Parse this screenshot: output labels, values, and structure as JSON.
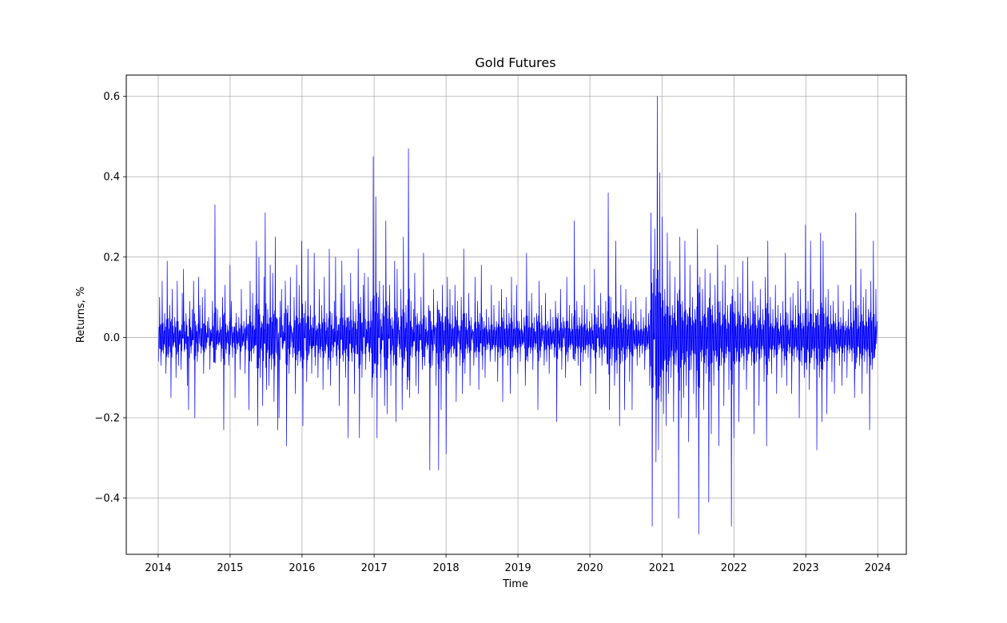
{
  "chart_data": {
    "type": "line",
    "title": "Gold Futures",
    "xlabel": "Time",
    "ylabel": "Returns, %",
    "xlim": [
      "2013-07-23",
      "2024-05-25"
    ],
    "ylim": [
      -0.54,
      0.653
    ],
    "grid": true,
    "line_color": "#0000ff",
    "x_ticks": [
      "2014",
      "2015",
      "2016",
      "2017",
      "2018",
      "2019",
      "2020",
      "2021",
      "2022",
      "2023",
      "2024"
    ],
    "y_ticks": [
      {
        "value": -0.4,
        "label": "−0.4"
      },
      {
        "value": -0.2,
        "label": "−0.2"
      },
      {
        "value": 0.0,
        "label": "0.0"
      },
      {
        "value": 0.2,
        "label": "0.2"
      },
      {
        "value": 0.4,
        "label": "0.4"
      },
      {
        "value": 0.6,
        "label": "0.6"
      }
    ],
    "series": [
      {
        "x_start": "2014-01-02",
        "x_end": "2023-12-29",
        "values": [
          -0.06,
          0.1,
          -0.07,
          0.14,
          -0.04,
          0.06,
          -0.09,
          0.19,
          -0.05,
          0.08,
          -0.15,
          0.12,
          -0.02,
          0.05,
          -0.1,
          0.14,
          -0.07,
          0.02,
          -0.08,
          0.11,
          0.17,
          -0.03,
          0.06,
          -0.12,
          -0.18,
          0.09,
          -0.04,
          0.07,
          0.14,
          -0.2,
          0.03,
          -0.06,
          0.15,
          0.08,
          -0.04,
          0.1,
          -0.09,
          0.12,
          -0.03,
          0.04,
          0.05,
          -0.08,
          0.02,
          0.09,
          -0.06,
          0.33,
          -0.03,
          0.07,
          -0.02,
          0.05,
          -0.06,
          0.1,
          -0.23,
          0.13,
          -0.04,
          0.03,
          -0.07,
          0.18,
          0.09,
          -0.05,
          0.02,
          -0.15,
          0.06,
          -0.03,
          0.05,
          -0.08,
          0.12,
          -0.02,
          0.04,
          -0.09,
          0.07,
          0.03,
          -0.18,
          0.14,
          -0.06,
          0.11,
          -0.04,
          0.08,
          0.24,
          -0.22,
          0.2,
          -0.1,
          0.04,
          -0.17,
          0.15,
          0.31,
          -0.13,
          0.07,
          -0.12,
          0.18,
          -0.08,
          0.16,
          -0.16,
          0.25,
          0.05,
          -0.23,
          -0.2,
          0.09,
          0.12,
          -0.03,
          0.06,
          0.14,
          -0.27,
          0.08,
          -0.09,
          0.15,
          0.02,
          -0.05,
          0.1,
          -0.14,
          0.18,
          -0.07,
          0.13,
          -0.06,
          0.24,
          -0.22,
          0.06,
          0.09,
          -0.11,
          0.22,
          -0.04,
          0.08,
          -0.09,
          0.05,
          0.21,
          -0.07,
          0.03,
          -0.1,
          0.12,
          -0.05,
          0.08,
          -0.13,
          0.15,
          -0.04,
          0.06,
          -0.08,
          0.22,
          -0.12,
          0.06,
          -0.05,
          0.09,
          0.2,
          -0.07,
          0.03,
          -0.17,
          0.11,
          0.19,
          -0.06,
          0.13,
          -0.1,
          0.05,
          -0.25,
          0.04,
          0.16,
          -0.06,
          0.09,
          -0.14,
          0.07,
          -0.04,
          0.22,
          -0.25,
          0.1,
          -0.1,
          0.13,
          0.16,
          -0.08,
          0.04,
          0.15,
          -0.06,
          0.09,
          -0.15,
          0.45,
          -0.06,
          0.35,
          -0.25,
          0.1,
          0.14,
          -0.1,
          0.06,
          0.13,
          -0.17,
          0.29,
          -0.19,
          0.08,
          0.13,
          -0.12,
          0.05,
          -0.07,
          0.19,
          -0.21,
          0.17,
          0.05,
          -0.05,
          0.12,
          -0.18,
          0.25,
          -0.06,
          0.08,
          -0.13,
          0.47,
          -0.15,
          0.09,
          -0.05,
          0.07,
          0.16,
          -0.12,
          0.06,
          -0.14,
          0.04,
          0.1,
          -0.08,
          0.21,
          -0.07,
          0.05,
          -0.03,
          0.08,
          -0.33,
          0.04,
          -0.07,
          0.12,
          0.03,
          -0.12,
          0.09,
          -0.33,
          0.06,
          -0.18,
          0.13,
          -0.06,
          0.04,
          -0.29,
          0.15,
          -0.09,
          0.12,
          -0.05,
          0.08,
          -0.04,
          0.13,
          -0.16,
          0.09,
          0.03,
          -0.07,
          0.1,
          -0.14,
          0.22,
          -0.09,
          0.06,
          -0.04,
          0.11,
          -0.12,
          0.05,
          0.02,
          -0.07,
          0.15,
          -0.05,
          0.09,
          -0.13,
          0.06,
          0.18,
          -0.08,
          0.04,
          -0.1,
          0.07,
          -0.03,
          0.05,
          -0.06,
          0.13,
          -0.03,
          0.08,
          -0.06,
          0.04,
          -0.11,
          0.09,
          -0.05,
          0.12,
          -0.16,
          0.07,
          -0.04,
          0.1,
          -0.07,
          0.06,
          -0.14,
          0.15,
          -0.05,
          0.08,
          -0.03,
          0.13,
          -0.09,
          0.04,
          -0.06,
          0.07,
          -0.02,
          0.05,
          -0.12,
          0.21,
          -0.06,
          0.09,
          -0.04,
          0.11,
          -0.08,
          0.05,
          -0.03,
          0.06,
          -0.18,
          0.14,
          -0.05,
          0.08,
          0.03,
          -0.07,
          0.11,
          -0.06,
          0.04,
          -0.09,
          0.07,
          -0.03,
          0.05,
          -0.05,
          0.09,
          -0.21,
          0.06,
          -0.03,
          0.12,
          -0.08,
          0.05,
          0.04,
          -0.1,
          0.15,
          -0.06,
          0.08,
          -0.03,
          0.06,
          -0.05,
          0.29,
          -0.04,
          0.09,
          -0.07,
          0.05,
          -0.12,
          0.08,
          -0.06,
          0.13,
          -0.04,
          0.07,
          -0.05,
          0.04,
          -0.09,
          0.06,
          -0.03,
          0.17,
          -0.14,
          0.05,
          0.08,
          -0.05,
          0.11,
          -0.07,
          0.06,
          -0.04,
          0.09,
          -0.06,
          0.36,
          -0.18,
          0.1,
          -0.07,
          0.06,
          -0.12,
          0.24,
          -0.09,
          0.05,
          -0.22,
          0.13,
          -0.06,
          0.08,
          -0.18,
          0.12,
          -0.05,
          0.07,
          -0.11,
          0.09,
          -0.18,
          0.06,
          -0.03,
          0.1,
          -0.07,
          0.04,
          -0.05,
          0.07,
          -0.04,
          0.05,
          -0.08,
          0.1,
          -0.03,
          0.06,
          -0.12,
          0.31,
          -0.47,
          0.17,
          0.27,
          -0.31,
          0.6,
          -0.28,
          0.41,
          -0.16,
          0.3,
          -0.19,
          0.12,
          -0.22,
          0.26,
          -0.14,
          0.19,
          -0.1,
          0.08,
          -0.21,
          0.15,
          -0.07,
          0.11,
          -0.45,
          0.25,
          -0.2,
          0.09,
          -0.15,
          0.24,
          -0.12,
          0.06,
          -0.26,
          0.18,
          -0.08,
          0.1,
          -0.14,
          0.07,
          -0.2,
          0.27,
          -0.49,
          0.15,
          -0.06,
          0.12,
          -0.18,
          0.17,
          -0.09,
          0.06,
          -0.41,
          0.16,
          -0.24,
          0.08,
          -0.12,
          0.13,
          -0.06,
          0.23,
          -0.27,
          0.09,
          -0.07,
          0.14,
          -0.17,
          0.18,
          -0.05,
          0.08,
          -0.13,
          0.06,
          -0.47,
          0.12,
          -0.25,
          0.09,
          -0.06,
          0.15,
          -0.21,
          0.11,
          -0.05,
          0.19,
          -0.08,
          0.06,
          -0.13,
          0.2,
          -0.04,
          0.09,
          -0.07,
          0.14,
          -0.24,
          0.1,
          -0.06,
          0.08,
          -0.17,
          0.12,
          -0.05,
          0.07,
          -0.11,
          0.15,
          -0.27,
          0.24,
          -0.06,
          0.1,
          -0.09,
          0.07,
          -0.05,
          0.13,
          -0.14,
          0.08,
          -0.03,
          0.06,
          -0.1,
          0.09,
          -0.07,
          0.21,
          -0.12,
          0.06,
          -0.04,
          0.1,
          -0.14,
          0.11,
          -0.06,
          0.08,
          -0.05,
          0.14,
          -0.2,
          0.12,
          -0.07,
          0.06,
          -0.1,
          0.28,
          -0.08,
          0.09,
          -0.13,
          0.24,
          -0.05,
          0.12,
          -0.08,
          0.06,
          -0.28,
          0.07,
          -0.1,
          0.26,
          -0.21,
          0.24,
          -0.06,
          0.1,
          -0.19,
          0.12,
          -0.05,
          0.08,
          -0.11,
          0.09,
          -0.14,
          0.06,
          -0.04,
          0.13,
          -0.07,
          0.05,
          -0.12,
          0.09,
          -0.06,
          0.04,
          -0.1,
          0.07,
          -0.04,
          0.13,
          -0.06,
          0.09,
          -0.15,
          0.31,
          -0.05,
          0.08,
          -0.07,
          0.17,
          -0.14,
          0.1,
          -0.06,
          0.12,
          -0.09,
          0.07,
          -0.23,
          0.14,
          -0.08,
          0.24,
          -0.05,
          0.12,
          0.04
        ]
      }
    ]
  }
}
